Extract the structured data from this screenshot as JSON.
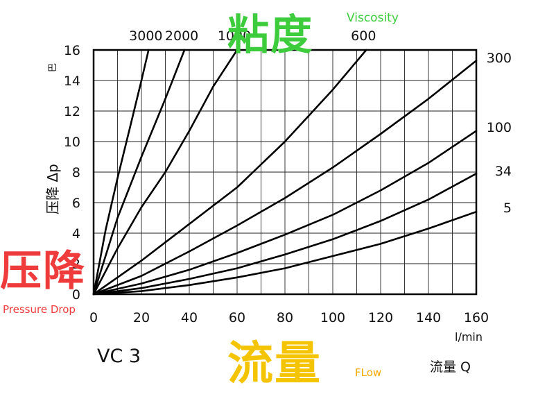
{
  "overlays": {
    "viscosity_zh": "粘度",
    "viscosity_en": "Viscosity",
    "pressure_zh": "压降",
    "pressure_en": "Pressure Drop",
    "flow_zh": "流量",
    "flow_en": "FLow"
  },
  "colors": {
    "viscosity": "#3ccc3c",
    "pressure": "#ef3b3b",
    "flow": "#f5c400"
  },
  "model": "VC 3",
  "chart_data": {
    "type": "line",
    "title": "",
    "xlabel": "流量 Q",
    "xunit": "l/min",
    "ylabel": "压降 Δp",
    "yunit": "巴",
    "xlim": [
      0,
      160
    ],
    "ylim": [
      0,
      16
    ],
    "xticks": [
      0,
      20,
      40,
      60,
      80,
      100,
      120,
      140,
      160
    ],
    "yticks": [
      0,
      2,
      4,
      6,
      8,
      10,
      12,
      14,
      16
    ],
    "grid": true,
    "series": [
      {
        "name": "3000",
        "x": [
          0,
          5,
          10,
          15,
          20,
          23
        ],
        "y": [
          0,
          4.2,
          7.6,
          10.8,
          14.0,
          16.0
        ]
      },
      {
        "name": "2000",
        "x": [
          0,
          10,
          20,
          30,
          38
        ],
        "y": [
          0,
          5.0,
          9.0,
          12.8,
          16.0
        ]
      },
      {
        "name": "1000",
        "x": [
          0,
          10,
          20,
          30,
          40,
          50,
          60
        ],
        "y": [
          0,
          3.0,
          5.7,
          8.0,
          10.7,
          13.6,
          16.0
        ]
      },
      {
        "name": "600",
        "x": [
          0,
          20,
          40,
          60,
          80,
          100,
          114
        ],
        "y": [
          0,
          2.2,
          4.6,
          7.0,
          10.0,
          13.4,
          16.0
        ]
      },
      {
        "name": "300",
        "x": [
          0,
          20,
          40,
          60,
          80,
          100,
          120,
          140,
          160
        ],
        "y": [
          0,
          1.2,
          2.8,
          4.5,
          6.3,
          8.3,
          10.5,
          12.8,
          15.3
        ]
      },
      {
        "name": "100",
        "x": [
          0,
          20,
          40,
          60,
          80,
          100,
          120,
          140,
          160
        ],
        "y": [
          0,
          0.7,
          1.6,
          2.7,
          3.9,
          5.2,
          6.8,
          8.6,
          10.7
        ]
      },
      {
        "name": "34",
        "x": [
          0,
          20,
          40,
          60,
          80,
          100,
          120,
          140,
          160
        ],
        "y": [
          0,
          0.4,
          1.0,
          1.7,
          2.6,
          3.6,
          4.8,
          6.2,
          7.9
        ]
      },
      {
        "name": "5",
        "x": [
          0,
          20,
          40,
          60,
          80,
          100,
          120,
          140,
          160
        ],
        "y": [
          0,
          0.2,
          0.6,
          1.1,
          1.7,
          2.5,
          3.3,
          4.3,
          5.4
        ]
      }
    ]
  }
}
